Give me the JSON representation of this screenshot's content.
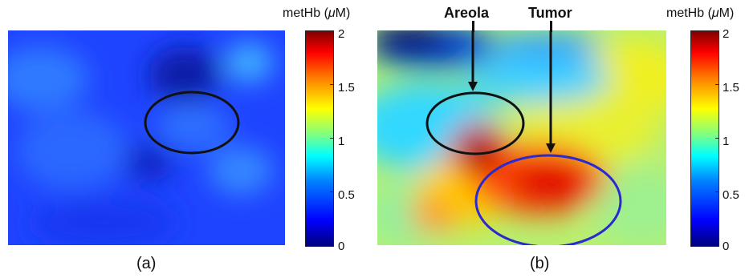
{
  "colorbar": {
    "title_prefix": "metHb (",
    "title_mu": "μ",
    "title_suffix": "M)",
    "ticks": [
      "2",
      "1.5",
      "1",
      "0.5",
      "0"
    ],
    "range": [
      0,
      2
    ],
    "colors": [
      "#00007f",
      "#0000ff",
      "#00ffff",
      "#ffff00",
      "#ff0000",
      "#800000"
    ]
  },
  "panels": {
    "a": {
      "label": "(a)"
    },
    "b": {
      "label": "(b)",
      "annotations": {
        "areola": "Areola",
        "tumor": "Tumor"
      }
    }
  },
  "colors": {
    "areola_outline": "#111111",
    "tumor_outline": "#2a2ad0",
    "arrow": "#111111"
  }
}
